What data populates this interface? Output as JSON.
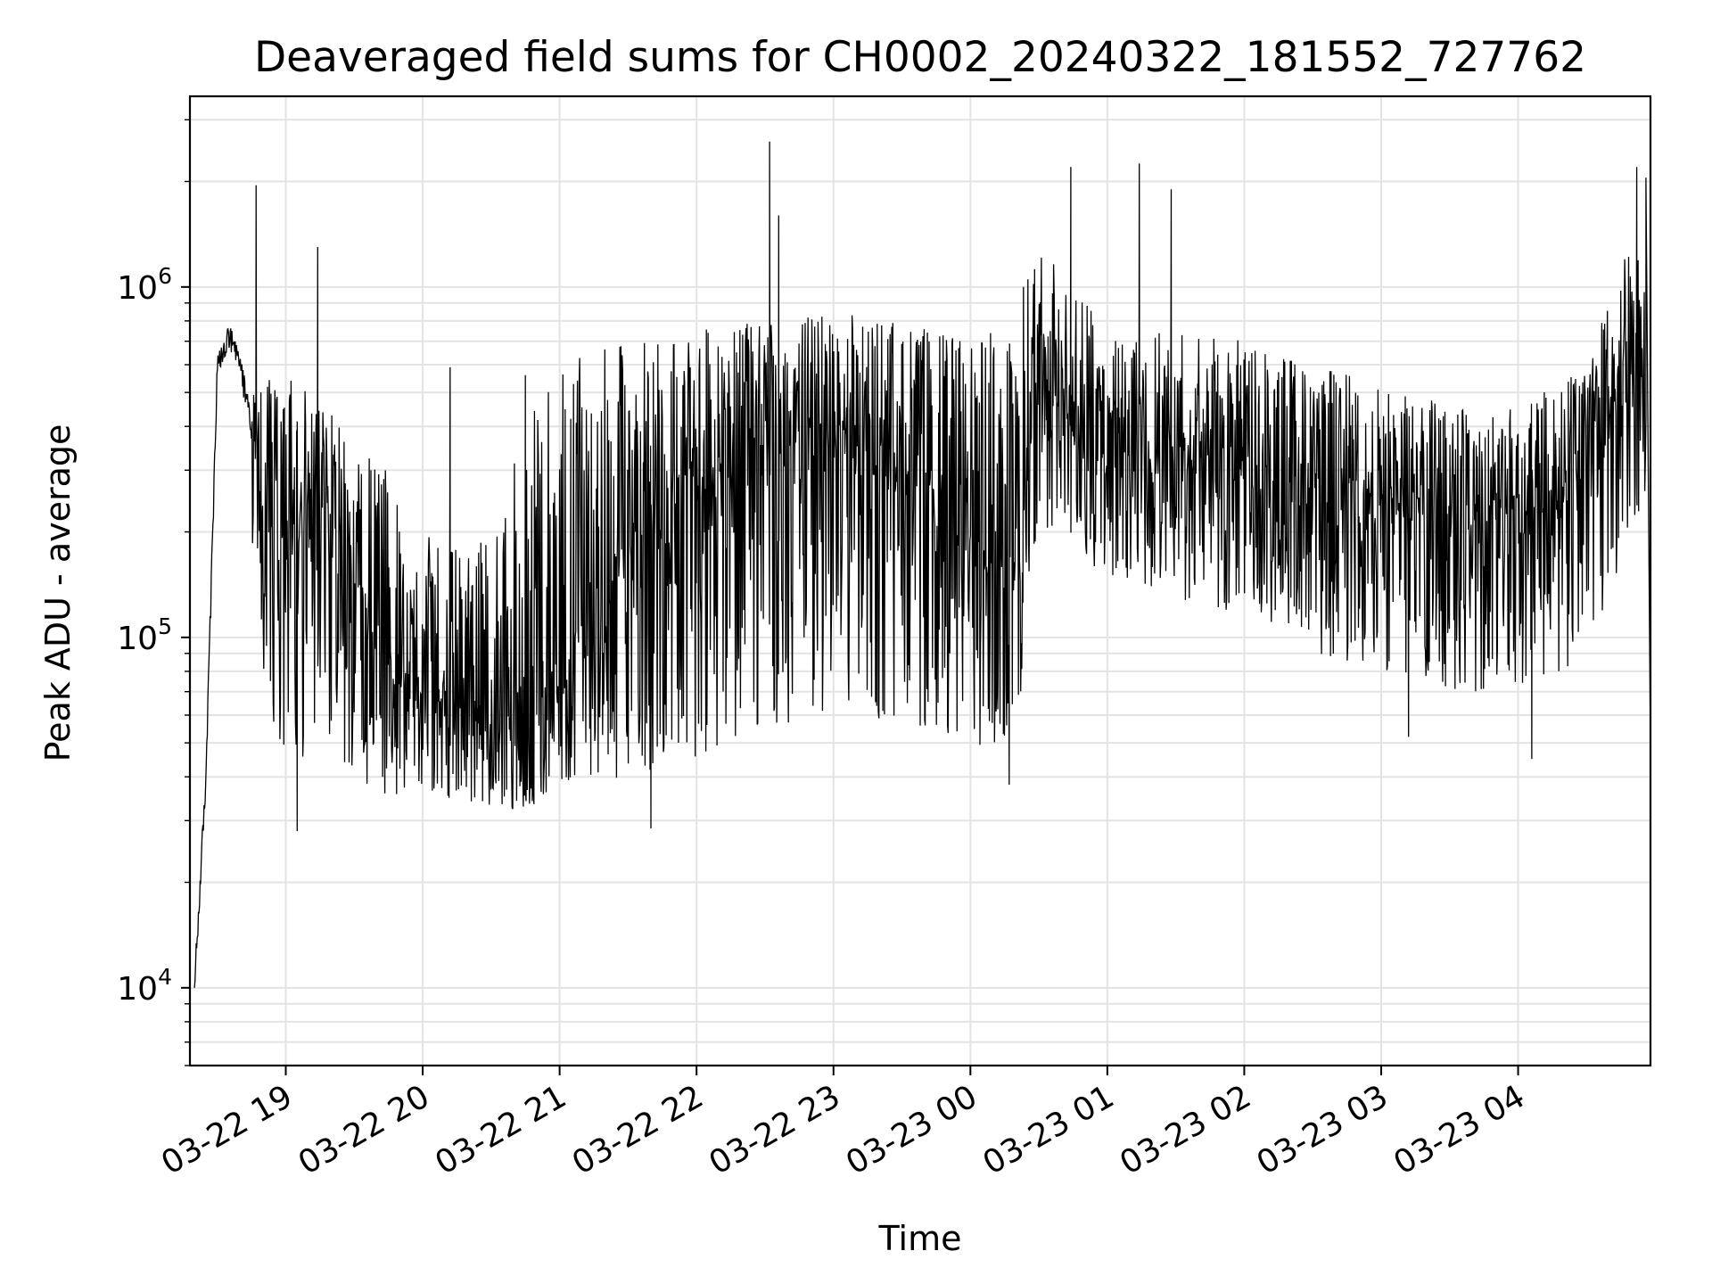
{
  "chart_data": {
    "type": "line",
    "title": "Deaveraged field sums for CH0002_20240322_181552_727762",
    "xlabel": "Time",
    "ylabel": "Peak ADU - average",
    "yscale": "log",
    "ylim": [
      6000,
      3500000
    ],
    "xlim": [
      "03-22 18:18",
      "03-23 04:58"
    ],
    "grid": true,
    "line_color": "#000000",
    "x_ticks": [
      "03-22 19",
      "03-22 20",
      "03-22 21",
      "03-22 22",
      "03-22 23",
      "03-23 00",
      "03-23 01",
      "03-23 02",
      "03-23 03",
      "03-23 04"
    ],
    "y_ticks": [
      {
        "base": "10",
        "exp": "4",
        "value": 10000
      },
      {
        "base": "10",
        "exp": "5",
        "value": 100000
      },
      {
        "base": "10",
        "exp": "6",
        "value": 1000000
      }
    ],
    "envelope": {
      "x": [
        "03-22 18:20",
        "03-22 18:25",
        "03-22 18:30",
        "03-22 18:35",
        "03-22 18:40",
        "03-22 18:45",
        "03-22 18:50",
        "03-22 19:00",
        "03-22 19:15",
        "03-22 19:30",
        "03-22 19:45",
        "03-22 20:00",
        "03-22 20:15",
        "03-22 20:30",
        "03-22 20:45",
        "03-22 21:00",
        "03-22 21:30",
        "03-22 22:00",
        "03-22 22:30",
        "03-22 23:00",
        "03-22 23:30",
        "03-23 00:00",
        "03-23 00:20",
        "03-23 00:30",
        "03-23 01:00",
        "03-23 01:30",
        "03-23 02:00",
        "03-23 02:30",
        "03-23 03:00",
        "03-23 03:30",
        "03-23 04:00",
        "03-23 04:30",
        "03-23 04:50"
      ],
      "median": [
        10000,
        40000,
        580000,
        720000,
        600000,
        400000,
        200000,
        210000,
        230000,
        150000,
        90000,
        65000,
        60000,
        52000,
        50000,
        75000,
        180000,
        280000,
        330000,
        360000,
        300000,
        200000,
        150000,
        450000,
        340000,
        330000,
        310000,
        260000,
        230000,
        210000,
        215000,
        260000,
        650000
      ],
      "low": [
        8000,
        25000,
        520000,
        650000,
        500000,
        200000,
        70000,
        45000,
        45000,
        40000,
        35000,
        35000,
        34000,
        32000,
        32000,
        38000,
        40000,
        45000,
        55000,
        60000,
        55000,
        50000,
        45000,
        200000,
        150000,
        130000,
        110000,
        90000,
        80000,
        70000,
        70000,
        80000,
        200000
      ],
      "high": [
        12000,
        80000,
        700000,
        800000,
        650000,
        550000,
        550000,
        560000,
        500000,
        350000,
        300000,
        200000,
        180000,
        200000,
        400000,
        600000,
        700000,
        750000,
        800000,
        850000,
        800000,
        700000,
        900000,
        1300000,
        800000,
        750000,
        700000,
        600000,
        550000,
        450000,
        450000,
        600000,
        1400000
      ]
    },
    "spikes": [
      {
        "x": "03-22 18:47",
        "y": 1950000
      },
      {
        "x": "03-22 19:14",
        "y": 1300000
      },
      {
        "x": "03-22 20:12",
        "y": 590000
      },
      {
        "x": "03-22 20:45",
        "y": 560000
      },
      {
        "x": "03-22 22:32",
        "y": 2600000
      },
      {
        "x": "03-22 22:36",
        "y": 1600000
      },
      {
        "x": "03-23 00:44",
        "y": 2200000
      },
      {
        "x": "03-23 01:14",
        "y": 2250000
      },
      {
        "x": "03-23 01:28",
        "y": 1900000
      },
      {
        "x": "03-23 04:52",
        "y": 2200000
      },
      {
        "x": "03-23 04:56",
        "y": 2050000
      },
      {
        "x": "03-22 19:05",
        "y": 28000
      },
      {
        "x": "03-22 21:40",
        "y": 28500
      },
      {
        "x": "03-23 00:17",
        "y": 38000
      },
      {
        "x": "03-23 03:12",
        "y": 52000
      },
      {
        "x": "03-23 04:06",
        "y": 45000
      }
    ]
  }
}
